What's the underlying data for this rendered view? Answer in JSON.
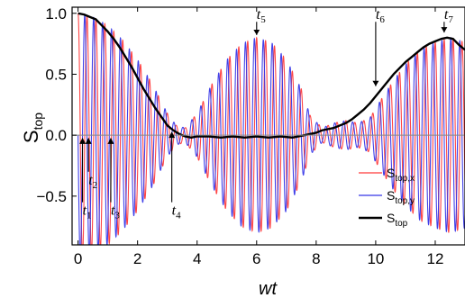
{
  "chart_data": {
    "type": "line",
    "title": "",
    "xlabel": "wt",
    "ylabel": {
      "main": "S",
      "sub": "top"
    },
    "xlim": [
      -0.2,
      13.0
    ],
    "ylim": [
      -0.9,
      1.05
    ],
    "x_ticks": [
      0,
      2,
      4,
      6,
      8,
      10,
      12
    ],
    "x_tick_labels": [
      "0",
      "2",
      "4",
      "6",
      "8",
      "10",
      "12"
    ],
    "y_ticks": [
      1.0,
      0.5,
      0.0,
      -0.5
    ],
    "y_tick_labels": [
      "1.0",
      "0.5",
      "0.0",
      "−0.5"
    ],
    "zero_line": true,
    "grid": false,
    "legend": {
      "placement": "lower-right",
      "entries": [
        {
          "main": "S",
          "sub": "top,x",
          "color": "#ff3b3b"
        },
        {
          "main": "S",
          "sub": "top,y",
          "color": "#3636e8"
        },
        {
          "main": "S",
          "sub": "top",
          "color": "#000000"
        }
      ]
    },
    "oscillation_period": 0.3,
    "series": [
      {
        "name": "S_top,x",
        "color": "#ff3b3b",
        "phase": 0,
        "amplitude_envelope": {
          "x": [
            0,
            0.5,
            1.0,
            1.5,
            2.0,
            2.5,
            3.0,
            3.3,
            3.6,
            4.0,
            4.5,
            5.0,
            5.5,
            6.0,
            6.5,
            7.0,
            7.5,
            7.8,
            8.2,
            8.6,
            9.0,
            9.4,
            9.8,
            10.2,
            10.6,
            11.0,
            11.5,
            12.0,
            12.5,
            13.0
          ],
          "y": [
            1.0,
            0.97,
            0.9,
            0.78,
            0.62,
            0.42,
            0.18,
            0.08,
            0.06,
            0.18,
            0.42,
            0.62,
            0.75,
            0.8,
            0.76,
            0.62,
            0.38,
            0.16,
            0.06,
            0.1,
            0.12,
            0.1,
            0.14,
            0.3,
            0.45,
            0.58,
            0.7,
            0.76,
            0.8,
            0.76
          ]
        }
      },
      {
        "name": "S_top,y",
        "color": "#3636e8",
        "phase": 1.5708,
        "amplitude_envelope": {
          "x": [
            0,
            0.5,
            1.0,
            1.5,
            2.0,
            2.5,
            3.0,
            3.3,
            3.6,
            4.0,
            4.5,
            5.0,
            5.5,
            6.0,
            6.5,
            7.0,
            7.5,
            7.8,
            8.2,
            8.6,
            9.0,
            9.4,
            9.8,
            10.2,
            10.6,
            11.0,
            11.5,
            12.0,
            12.5,
            13.0
          ],
          "y": [
            1.0,
            0.97,
            0.9,
            0.78,
            0.62,
            0.42,
            0.18,
            0.08,
            0.06,
            0.18,
            0.42,
            0.62,
            0.75,
            0.8,
            0.76,
            0.62,
            0.38,
            0.16,
            0.06,
            0.1,
            0.12,
            0.1,
            0.14,
            0.3,
            0.45,
            0.58,
            0.7,
            0.76,
            0.8,
            0.76
          ]
        }
      },
      {
        "name": "S_top",
        "color": "#000000",
        "x": [
          0,
          0.2,
          0.4,
          0.6,
          0.8,
          1.0,
          1.2,
          1.4,
          1.6,
          1.8,
          2.0,
          2.2,
          2.4,
          2.6,
          2.8,
          3.0,
          3.2,
          3.4,
          3.6,
          3.8,
          4.0,
          4.4,
          4.8,
          5.2,
          5.6,
          6.0,
          6.4,
          6.8,
          7.2,
          7.6,
          8.0,
          8.2,
          8.4,
          8.6,
          8.8,
          9.0,
          9.2,
          9.4,
          9.6,
          9.8,
          10.0,
          10.2,
          10.4,
          10.6,
          10.8,
          11.0,
          11.2,
          11.4,
          11.6,
          11.8,
          12.0,
          12.2,
          12.4,
          12.6,
          12.8,
          13.0
        ],
        "y": [
          1.0,
          0.99,
          0.97,
          0.95,
          0.9,
          0.85,
          0.79,
          0.72,
          0.64,
          0.56,
          0.47,
          0.38,
          0.3,
          0.22,
          0.15,
          0.08,
          0.04,
          0.01,
          -0.01,
          -0.02,
          -0.01,
          -0.01,
          -0.02,
          -0.01,
          -0.02,
          -0.01,
          -0.02,
          -0.01,
          -0.02,
          0.0,
          0.02,
          0.04,
          0.05,
          0.06,
          0.08,
          0.1,
          0.13,
          0.17,
          0.21,
          0.26,
          0.32,
          0.38,
          0.44,
          0.5,
          0.55,
          0.6,
          0.64,
          0.68,
          0.72,
          0.75,
          0.77,
          0.79,
          0.8,
          0.79,
          0.74,
          0.7
        ]
      }
    ],
    "annotations": [
      {
        "main": "t",
        "sub": "1",
        "x": 0.15,
        "arrow_from": -0.55,
        "arrow_to": -0.02
      },
      {
        "main": "t",
        "sub": "2",
        "x": 0.35,
        "arrow_from": -0.3,
        "arrow_to": -0.02
      },
      {
        "main": "t",
        "sub": "3",
        "x": 1.1,
        "arrow_from": -0.55,
        "arrow_to": -0.02
      },
      {
        "main": "t",
        "sub": "4",
        "x": 3.15,
        "arrow_from": -0.55,
        "arrow_to": 0.03
      },
      {
        "main": "t",
        "sub": "5",
        "x": 6.0,
        "arrow_from": 0.93,
        "arrow_to": 0.8
      },
      {
        "main": "t",
        "sub": "6",
        "x": 10.0,
        "arrow_from": 0.93,
        "arrow_to": 0.38
      },
      {
        "main": "t",
        "sub": "7",
        "x": 12.3,
        "arrow_from": 0.93,
        "arrow_to": 0.82
      }
    ]
  }
}
